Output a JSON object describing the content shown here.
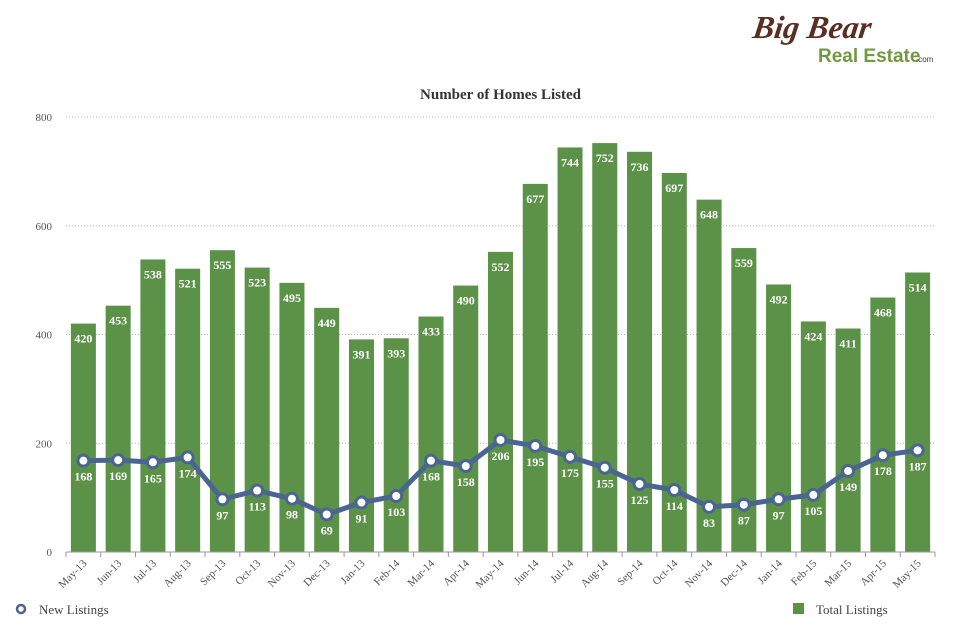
{
  "brand": {
    "logo_line1": "Big Bear",
    "logo_line2": "Real Estate",
    "logo_suffix": ".com",
    "logo_color_dark": "#5a2f22",
    "logo_color_green": "#6f9a3f"
  },
  "chart_data": {
    "type": "bar",
    "title": "Number of Homes Listed",
    "xlabel": "",
    "ylabel": "",
    "ylim": [
      0,
      800
    ],
    "yticks": [
      0,
      200,
      400,
      600,
      800
    ],
    "grid": true,
    "legend_placement": "bottom",
    "categories": [
      "May-13",
      "Jun-13",
      "Jul-13",
      "Aug-13",
      "Sep-13",
      "Oct-13",
      "Nov-13",
      "Dec-13",
      "Jan-13",
      "Feb-14",
      "Mar-14",
      "Apr-14",
      "May-14",
      "Jun-14",
      "Jul-14",
      "Aug-14",
      "Sep-14",
      "Oct-14",
      "Nov-14",
      "Dec-14",
      "Jan-14",
      "Feb-15",
      "Mar-15",
      "Apr-15",
      "May-15"
    ],
    "series": [
      {
        "name": "Total Listings",
        "type": "bar",
        "color": "#5b9248",
        "values": [
          420,
          453,
          538,
          521,
          555,
          523,
          495,
          449,
          391,
          393,
          433,
          490,
          552,
          677,
          744,
          752,
          736,
          697,
          648,
          559,
          492,
          424,
          411,
          468,
          514
        ]
      },
      {
        "name": "New Listings",
        "type": "line",
        "color": "#4a6591",
        "values": [
          168,
          169,
          165,
          174,
          97,
          113,
          98,
          69,
          91,
          103,
          168,
          158,
          206,
          195,
          175,
          155,
          125,
          114,
          83,
          87,
          97,
          105,
          149,
          178,
          187
        ]
      }
    ]
  }
}
